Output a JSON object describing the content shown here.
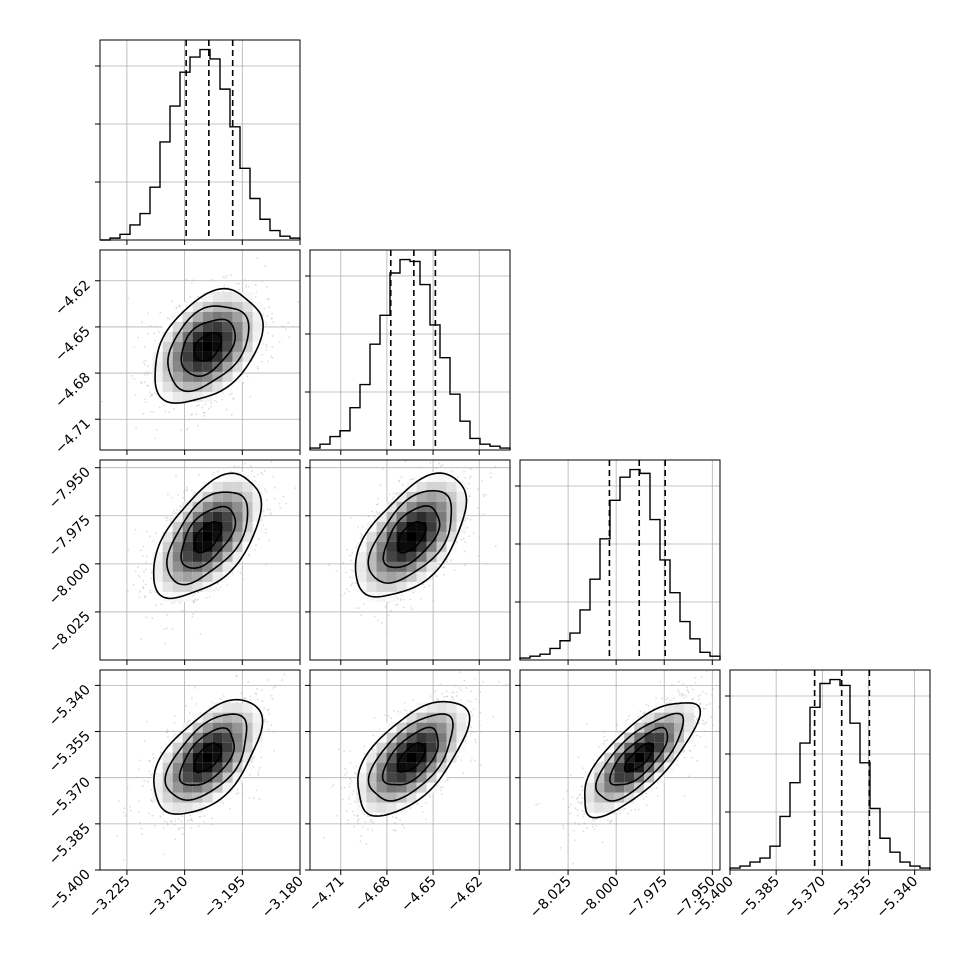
{
  "chart_data": {
    "type": "corner",
    "parameters": [
      {
        "range": [
          -3.232,
          -3.18
        ],
        "ticks": [
          -3.225,
          -3.21,
          -3.195,
          -3.18
        ],
        "tick_labels": [
          "−3.225",
          "−3.210",
          "−3.195",
          "−3.180"
        ],
        "quantiles": [
          -3.2096,
          -3.2037,
          -3.1975
        ],
        "hist": [
          0,
          1,
          3,
          8,
          14,
          28,
          52,
          71,
          89,
          97,
          101,
          96,
          80,
          60,
          38,
          22,
          11,
          5,
          2,
          1
        ]
      },
      {
        "range": [
          -4.73,
          -4.6
        ],
        "ticks": [
          -4.71,
          -4.68,
          -4.65,
          -4.62
        ],
        "tick_labels": [
          "−4.71",
          "−4.68",
          "−4.65",
          "−4.62"
        ],
        "quantiles": [
          -4.6775,
          -4.6625,
          -4.6485
        ],
        "hist": [
          1,
          3,
          7,
          10,
          22,
          34,
          55,
          70,
          92,
          99,
          98,
          86,
          65,
          48,
          29,
          15,
          6,
          3,
          2,
          1
        ]
      },
      {
        "range": [
          -8.05,
          -7.946
        ],
        "ticks": [
          -8.025,
          -8.0,
          -7.975,
          -7.95
        ],
        "tick_labels": [
          "−8.025",
          "−8.000",
          "−7.975",
          "−7.950"
        ],
        "quantiles": [
          -8.0035,
          -7.988,
          -7.9745
        ],
        "hist": [
          1,
          2,
          3,
          6,
          10,
          14,
          26,
          42,
          63,
          83,
          95,
          99,
          97,
          73,
          52,
          35,
          20,
          11,
          4,
          2
        ]
      },
      {
        "range": [
          -5.4,
          -5.335
        ],
        "ticks": [
          -5.4,
          -5.385,
          -5.37,
          -5.355,
          -5.34
        ],
        "tick_labels": [
          "−5.400",
          "−5.385",
          "−5.370",
          "−5.355",
          "−5.340"
        ],
        "quantiles": [
          -5.3725,
          -5.3637,
          -5.3547
        ],
        "hist": [
          1,
          2,
          4,
          6,
          12,
          27,
          44,
          64,
          82,
          94,
          96,
          93,
          74,
          54,
          31,
          16,
          9,
          4,
          2,
          1
        ]
      }
    ],
    "pairs": [
      {
        "x": 0,
        "y": 1,
        "center": [
          -3.204,
          -4.663
        ],
        "sigma": [
          0.007,
          0.0183
        ],
        "rho": 0.4
      },
      {
        "x": 0,
        "y": 2,
        "center": [
          -3.204,
          -7.986
        ],
        "sigma": [
          0.007,
          0.016
        ],
        "rho": 0.55
      },
      {
        "x": 1,
        "y": 2,
        "center": [
          -4.664,
          -7.986
        ],
        "sigma": [
          0.018,
          0.016
        ],
        "rho": 0.55
      },
      {
        "x": 0,
        "y": 3,
        "center": [
          -3.204,
          -5.3635
        ],
        "sigma": [
          0.007,
          0.0093
        ],
        "rho": 0.55
      },
      {
        "x": 1,
        "y": 3,
        "center": [
          -4.664,
          -5.3635
        ],
        "sigma": [
          0.018,
          0.0093
        ],
        "rho": 0.6
      },
      {
        "x": 2,
        "y": 3,
        "center": [
          -7.988,
          -5.3635
        ],
        "sigma": [
          0.015,
          0.0093
        ],
        "rho": 0.75
      }
    ],
    "contour_levels_sigma": [
      0.5,
      1.0,
      1.5,
      2.0
    ],
    "grid": true,
    "quantile_lines": "dashed"
  }
}
